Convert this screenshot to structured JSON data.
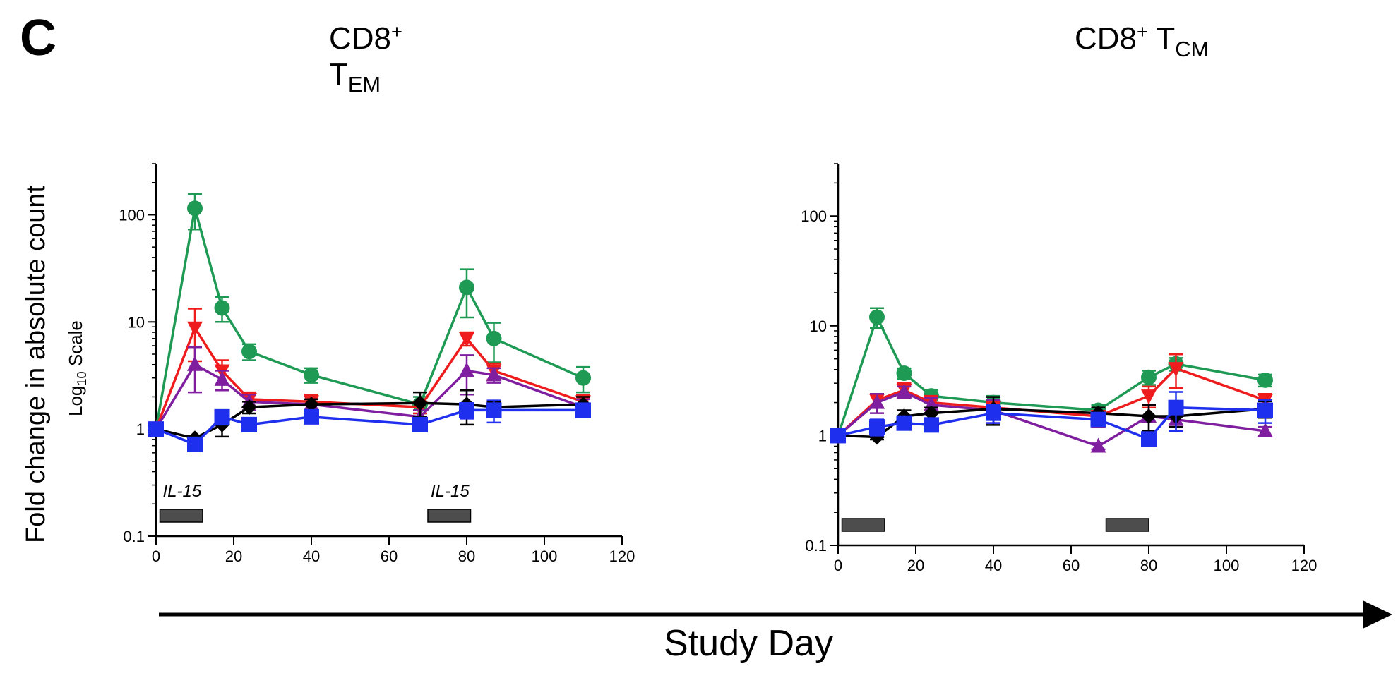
{
  "panel_label": "C",
  "y_axis_label": "Fold change  in absolute count",
  "y_axis_scale": {
    "prefix": "Log",
    "subscript": "10",
    "suffix": " Scale"
  },
  "x_axis_label": "Study Day",
  "colors": {
    "green": "#1e9a55",
    "red": "#ee1c1c",
    "purple": "#7f1fa0",
    "blue": "#1f2fee",
    "black": "#000000",
    "bar": "#4d4d4d"
  },
  "chart_data": [
    {
      "type": "line",
      "title": {
        "main": "CD8",
        "sup": "+",
        "line2": "T",
        "sub": "EM"
      },
      "yscale": "log",
      "ylim": [
        0.1,
        300
      ],
      "yticks": [
        0.1,
        1,
        10,
        100
      ],
      "ytick_labels": [
        "0.1",
        "1",
        "10",
        "100"
      ],
      "xlim": [
        0,
        120
      ],
      "xticks": [
        0,
        20,
        40,
        60,
        80,
        100,
        120
      ],
      "xtick_labels": [
        "0",
        "20",
        "40",
        "60",
        "80",
        "100",
        "120"
      ],
      "annotations": [
        {
          "text": "IL-15",
          "x_start": 1,
          "x_end": 12
        },
        {
          "text": "IL-15",
          "x_start": 70,
          "x_end": 81
        }
      ],
      "series": [
        {
          "color": "green",
          "marker": "circle",
          "x": [
            0,
            10,
            17,
            24,
            40,
            68,
            80,
            87,
            110
          ],
          "y": [
            1.0,
            115,
            13.5,
            5.3,
            3.2,
            1.7,
            21,
            7,
            3.0
          ],
          "err": [
            0,
            42,
            3.5,
            0.9,
            0.5,
            0.3,
            10,
            2.8,
            0.8
          ]
        },
        {
          "color": "red",
          "marker": "triangle-down",
          "x": [
            0,
            10,
            17,
            24,
            40,
            68,
            80,
            87,
            110
          ],
          "y": [
            1.0,
            8.8,
            3.5,
            1.9,
            1.8,
            1.6,
            7.0,
            3.5,
            1.8
          ],
          "err": [
            0,
            4.5,
            0.9,
            0.3,
            0.3,
            0.2,
            1.0,
            0.6,
            0.3
          ]
        },
        {
          "color": "purple",
          "marker": "triangle-up",
          "x": [
            0,
            10,
            17,
            24,
            40,
            68,
            80,
            87,
            110
          ],
          "y": [
            1.0,
            4.0,
            2.9,
            1.8,
            1.7,
            1.3,
            3.5,
            3.2,
            1.6
          ],
          "err": [
            0,
            1.8,
            0.6,
            0.3,
            0.2,
            0.2,
            1.4,
            0.5,
            0.3
          ]
        },
        {
          "color": "black",
          "marker": "diamond",
          "x": [
            0,
            10,
            17,
            24,
            40,
            68,
            80,
            87,
            110
          ],
          "y": [
            1.0,
            0.82,
            1.1,
            1.6,
            1.7,
            1.75,
            1.7,
            1.6,
            1.7
          ],
          "err": [
            0,
            0.05,
            0.25,
            0.2,
            0.2,
            0.45,
            0.6,
            0.2,
            0.3
          ]
        },
        {
          "color": "blue",
          "marker": "square",
          "x": [
            0,
            10,
            17,
            24,
            40,
            68,
            80,
            87,
            110
          ],
          "y": [
            1.0,
            0.72,
            1.3,
            1.1,
            1.3,
            1.1,
            1.5,
            1.5,
            1.5
          ],
          "err": [
            0,
            0.1,
            0.2,
            0.1,
            0.15,
            0.1,
            0.25,
            0.35,
            0.1
          ]
        }
      ]
    },
    {
      "type": "line",
      "title": {
        "main": "CD8",
        "sup": "+",
        "space": " T",
        "sub": "CM"
      },
      "yscale": "log",
      "ylim": [
        0.1,
        300
      ],
      "yticks": [
        0.1,
        1,
        10,
        100
      ],
      "ytick_labels": [
        "0.1",
        "1",
        "10",
        "100"
      ],
      "xlim": [
        0,
        120
      ],
      "xticks": [
        0,
        20,
        40,
        60,
        80,
        100,
        120
      ],
      "xtick_labels": [
        "0",
        "20",
        "40",
        "60",
        "80",
        "100",
        "120"
      ],
      "annotations": [
        {
          "x_start": 1,
          "x_end": 12
        },
        {
          "x_start": 69,
          "x_end": 80
        }
      ],
      "series": [
        {
          "color": "green",
          "marker": "circle",
          "x": [
            0,
            10,
            17,
            24,
            40,
            67,
            80,
            87,
            110
          ],
          "y": [
            1.0,
            12,
            3.7,
            2.3,
            2.0,
            1.7,
            3.4,
            4.5,
            3.2
          ],
          "err": [
            0,
            2.5,
            0.4,
            0.3,
            0.3,
            0.2,
            0.5,
            0.6,
            0.4
          ]
        },
        {
          "color": "red",
          "marker": "triangle-down",
          "x": [
            0,
            10,
            17,
            24,
            40,
            67,
            80,
            87,
            110
          ],
          "y": [
            1.0,
            2.1,
            2.6,
            2.0,
            1.8,
            1.5,
            2.3,
            4.1,
            2.1
          ],
          "err": [
            0,
            0.3,
            0.4,
            0.3,
            0.2,
            0.3,
            0.5,
            1.4,
            0.3
          ]
        },
        {
          "color": "purple",
          "marker": "triangle-up",
          "x": [
            0,
            10,
            17,
            24,
            40,
            67,
            80,
            87,
            110
          ],
          "y": [
            1.0,
            2.0,
            2.5,
            1.9,
            1.7,
            0.8,
            1.5,
            1.4,
            1.1
          ],
          "err": [
            0,
            0.4,
            0.3,
            0.3,
            0.4,
            0.05,
            0.4,
            0.3,
            0.1
          ]
        },
        {
          "color": "black",
          "marker": "diamond",
          "x": [
            0,
            10,
            17,
            24,
            40,
            67,
            80,
            87,
            110
          ],
          "y": [
            1.0,
            0.97,
            1.5,
            1.6,
            1.75,
            1.6,
            1.5,
            1.5,
            1.75
          ],
          "err": [
            0,
            0.05,
            0.2,
            0.2,
            0.5,
            0.2,
            0.4,
            0.3,
            0.3
          ]
        },
        {
          "color": "blue",
          "marker": "square",
          "x": [
            0,
            10,
            17,
            24,
            40,
            67,
            80,
            87,
            110
          ],
          "y": [
            1.0,
            1.2,
            1.3,
            1.25,
            1.6,
            1.4,
            0.93,
            1.8,
            1.7
          ],
          "err": [
            0,
            0.2,
            0.1,
            0.1,
            0.3,
            0.1,
            0.1,
            0.7,
            0.4
          ]
        }
      ]
    }
  ]
}
